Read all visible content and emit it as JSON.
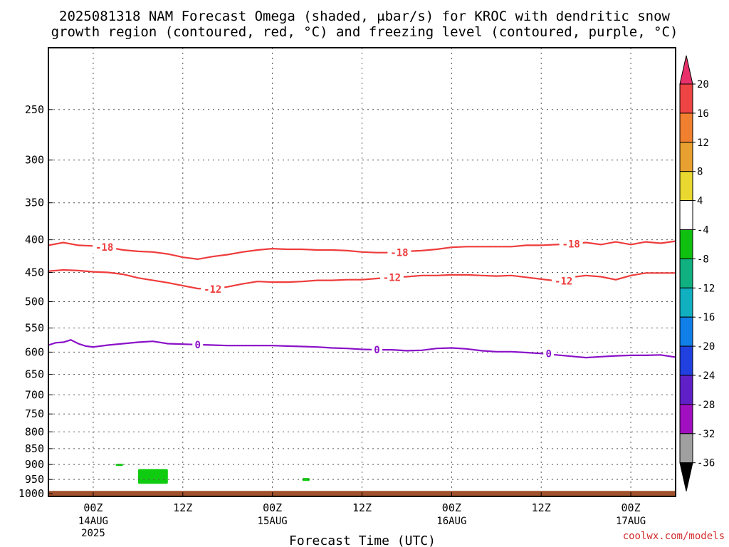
{
  "title_lines": [
    "2025081318 NAM Forecast Omega (shaded, μbar/s) for KROC with dendritic snow",
    "growth region (contoured, red, °C) and freezing level (contoured, purple, °C)"
  ],
  "credit": "coolwx.com/models",
  "chart_data": {
    "type": "time-height contour",
    "title": "2025081318 NAM Forecast Omega (shaded, μbar/s) for KROC with dendritic snow growth region (contoured, red, °C) and freezing level (contoured, purple, °C)",
    "xlabel": "Forecast Time (UTC)",
    "ylabel": "",
    "x_ticks": [
      {
        "hour": 6,
        "label": "00Z",
        "date": "14AUG",
        "year": "2025"
      },
      {
        "hour": 18,
        "label": "12Z",
        "date": "",
        "year": ""
      },
      {
        "hour": 30,
        "label": "00Z",
        "date": "15AUG",
        "year": ""
      },
      {
        "hour": 42,
        "label": "12Z",
        "date": "",
        "year": ""
      },
      {
        "hour": 54,
        "label": "00Z",
        "date": "16AUG",
        "year": ""
      },
      {
        "hour": 66,
        "label": "12Z",
        "date": "",
        "year": ""
      },
      {
        "hour": 78,
        "label": "00Z",
        "date": "17AUG",
        "year": ""
      }
    ],
    "xlim_hours": [
      0,
      84
    ],
    "y_scale": "log-pressure",
    "y_ticks": [
      250,
      300,
      350,
      400,
      450,
      500,
      550,
      600,
      650,
      700,
      750,
      800,
      850,
      900,
      950,
      1000
    ],
    "ylim": [
      200,
      1010
    ],
    "grid": true,
    "terrain_pressure": 990,
    "colorbar": {
      "labels": [
        "20",
        "16",
        "12",
        "8",
        "4",
        "-4",
        "-8",
        "-12",
        "-16",
        "-20",
        "-24",
        "-28",
        "-32",
        "-36"
      ],
      "colors": [
        "#e8306a",
        "#ee4444",
        "#f08030",
        "#e8a030",
        "#e8d830",
        "#ffffff",
        "#10c010",
        "#10b080",
        "#10b0c0",
        "#1080e8",
        "#2040e0",
        "#6020c8",
        "#a010c0",
        "#a0a0a0",
        "#000000"
      ]
    },
    "series": [
      {
        "contour": "-18",
        "color": "#ee3c3c",
        "labels_at_hours": [
          7.5,
          47,
          70
        ],
        "points": [
          [
            0,
            408
          ],
          [
            2,
            404
          ],
          [
            4,
            408
          ],
          [
            6,
            409
          ],
          [
            8,
            411
          ],
          [
            10,
            415
          ],
          [
            12,
            417
          ],
          [
            14,
            418
          ],
          [
            16,
            421
          ],
          [
            18,
            426
          ],
          [
            20,
            429
          ],
          [
            22,
            425
          ],
          [
            24,
            422
          ],
          [
            26,
            418
          ],
          [
            28,
            415
          ],
          [
            30,
            413
          ],
          [
            32,
            414
          ],
          [
            34,
            414
          ],
          [
            36,
            415
          ],
          [
            38,
            415
          ],
          [
            40,
            416
          ],
          [
            42,
            418
          ],
          [
            44,
            419
          ],
          [
            46,
            419
          ],
          [
            48,
            417
          ],
          [
            50,
            416
          ],
          [
            52,
            414
          ],
          [
            54,
            411
          ],
          [
            56,
            410
          ],
          [
            58,
            410
          ],
          [
            60,
            410
          ],
          [
            62,
            410
          ],
          [
            64,
            408
          ],
          [
            66,
            408
          ],
          [
            68,
            407
          ],
          [
            70,
            406
          ],
          [
            72,
            404
          ],
          [
            74,
            407
          ],
          [
            76,
            403
          ],
          [
            78,
            407
          ],
          [
            80,
            403
          ],
          [
            82,
            405
          ],
          [
            84,
            402
          ]
        ]
      },
      {
        "contour": "-12",
        "color": "#ee3c3c",
        "labels_at_hours": [
          22,
          46,
          69
        ]
      },
      {
        "contour": "0",
        "color": "#8a10c8",
        "labels_at_hours": [
          20,
          44,
          67
        ],
        "points": [
          [
            0,
            585
          ],
          [
            1,
            580
          ],
          [
            2,
            579
          ],
          [
            3,
            574
          ],
          [
            4,
            582
          ],
          [
            5,
            587
          ],
          [
            6,
            589
          ],
          [
            8,
            585
          ],
          [
            10,
            582
          ],
          [
            12,
            579
          ],
          [
            14,
            577
          ],
          [
            16,
            582
          ],
          [
            18,
            583
          ],
          [
            20,
            584
          ],
          [
            22,
            585
          ],
          [
            24,
            586
          ],
          [
            26,
            586
          ],
          [
            28,
            586
          ],
          [
            30,
            586
          ],
          [
            32,
            587
          ],
          [
            34,
            588
          ],
          [
            36,
            589
          ],
          [
            38,
            591
          ],
          [
            40,
            592
          ],
          [
            42,
            594
          ],
          [
            44,
            595
          ],
          [
            46,
            595
          ],
          [
            48,
            597
          ],
          [
            50,
            596
          ],
          [
            52,
            592
          ],
          [
            54,
            591
          ],
          [
            56,
            593
          ],
          [
            58,
            597
          ],
          [
            60,
            599
          ],
          [
            62,
            599
          ],
          [
            64,
            601
          ],
          [
            66,
            603
          ],
          [
            68,
            606
          ],
          [
            70,
            609
          ],
          [
            72,
            612
          ],
          [
            74,
            610
          ],
          [
            76,
            608
          ],
          [
            78,
            607
          ],
          [
            80,
            607
          ],
          [
            82,
            606
          ],
          [
            84,
            611
          ]
        ]
      }
    ],
    "shaded_areas": [
      {
        "value_range": "-4 to -8",
        "color": "#10cc10",
        "hours": [
          12,
          16
        ],
        "pressure": [
          915,
          965
        ]
      },
      {
        "value_range": "-4 to -8",
        "color": "#10cc10",
        "hours": [
          9,
          10
        ],
        "pressure": [
          898,
          905
        ]
      },
      {
        "value_range": "-4 to -8",
        "color": "#10cc10",
        "hours": [
          34,
          35
        ],
        "pressure": [
          945,
          955
        ]
      }
    ]
  }
}
